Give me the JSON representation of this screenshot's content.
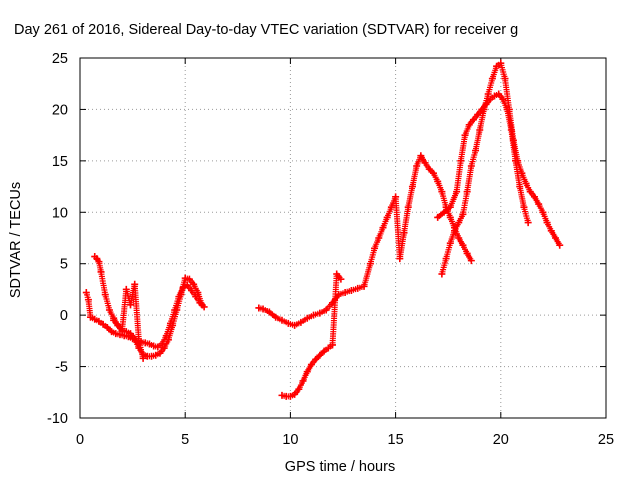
{
  "chart_data": {
    "type": "scatter",
    "title": "Day 261 of 2016, Sidereal Day-to-day VTEC variation (SDTVAR) for receiver g",
    "xlabel": "GPS time / hours",
    "ylabel": "SDTVAR / TECUs",
    "xlim": [
      0,
      25
    ],
    "ylim": [
      -10,
      25
    ],
    "xticks": [
      "0",
      "5",
      "10",
      "15",
      "20",
      "25"
    ],
    "yticks": [
      "-10",
      "-5",
      "0",
      "5",
      "10",
      "15",
      "20",
      "25"
    ],
    "grid": true,
    "marker": "+",
    "series_color": "#ff0000",
    "series": [
      {
        "x": [
          0.3,
          0.4,
          0.5,
          0.7,
          0.9,
          1.1,
          1.3,
          1.5,
          1.7,
          1.9,
          2.1,
          2.3,
          2.5,
          2.7,
          2.9,
          3.1,
          3.3,
          3.5,
          3.7,
          3.9,
          4.1,
          4.3,
          4.5,
          4.7,
          4.9,
          5.1,
          5.3,
          5.5,
          5.7,
          5.9
        ],
        "y": [
          2.2,
          1.5,
          -0.2,
          -0.4,
          -0.6,
          -0.9,
          -1.2,
          -1.6,
          -1.8,
          -1.9,
          -2.0,
          -2.1,
          -2.3,
          -2.5,
          -2.6,
          -2.7,
          -2.8,
          -3.0,
          -3.1,
          -2.8,
          -2.0,
          -0.8,
          0.5,
          1.8,
          2.7,
          2.9,
          2.4,
          1.8,
          1.2,
          0.8
        ]
      },
      {
        "x": [
          0.7,
          0.8,
          0.9,
          1.0,
          1.2,
          1.4,
          1.6,
          1.8,
          2.0,
          2.2,
          2.4,
          2.6,
          2.8,
          3.0,
          3.2,
          3.4,
          3.6,
          3.8,
          4.0,
          4.2,
          4.4,
          4.6,
          4.8,
          5.0,
          5.2,
          5.4,
          5.6,
          5.8
        ],
        "y": [
          5.7,
          5.5,
          5.2,
          4.2,
          2.0,
          0.5,
          -0.3,
          -1.0,
          -1.5,
          -1.6,
          -1.8,
          -2.3,
          -3.2,
          -3.8,
          -4.0,
          -4.0,
          -3.9,
          -3.7,
          -3.2,
          -2.4,
          -1.0,
          0.5,
          2.0,
          3.6,
          3.5,
          3.0,
          2.2,
          1.0
        ]
      },
      {
        "x": [
          1.6,
          1.8,
          2.0,
          2.2,
          2.4,
          2.6,
          2.8,
          3.0
        ],
        "y": [
          -0.5,
          -1.0,
          -1.5,
          2.5,
          1.0,
          3.0,
          -2.5,
          -4.2
        ]
      },
      {
        "x": [
          8.5,
          8.7,
          9.0,
          9.3,
          9.6,
          9.9,
          10.2,
          10.5,
          10.8,
          11.1,
          11.4,
          11.7,
          12.0,
          12.3,
          12.6,
          12.9,
          13.2,
          13.5,
          13.8,
          14.0,
          14.2,
          14.4,
          14.6,
          14.8,
          15.0,
          15.2,
          15.4,
          15.6,
          15.8,
          16.0,
          16.2,
          16.4,
          16.6,
          16.8,
          17.0,
          17.2,
          17.4,
          17.6,
          17.8,
          18.0,
          18.2,
          18.4,
          18.6
        ],
        "y": [
          0.7,
          0.6,
          0.3,
          -0.2,
          -0.5,
          -0.8,
          -1.0,
          -0.7,
          -0.3,
          0.0,
          0.2,
          0.5,
          1.2,
          2.0,
          2.2,
          2.4,
          2.6,
          2.8,
          5.0,
          6.5,
          7.5,
          8.5,
          9.5,
          10.5,
          11.5,
          5.5,
          8.0,
          10.5,
          12.5,
          14.5,
          15.5,
          14.8,
          14.2,
          13.8,
          13.0,
          12.0,
          10.5,
          9.5,
          8.5,
          7.5,
          6.8,
          6.0,
          5.3
        ]
      },
      {
        "x": [
          9.6,
          9.8,
          10.0,
          10.2,
          10.4,
          10.6,
          10.8,
          11.0,
          11.2,
          11.4,
          11.6,
          11.8,
          12.0,
          12.2,
          12.4
        ],
        "y": [
          -7.8,
          -7.9,
          -7.9,
          -7.7,
          -7.2,
          -6.4,
          -5.5,
          -4.8,
          -4.3,
          -3.9,
          -3.5,
          -3.2,
          -2.9,
          4.0,
          3.5
        ]
      },
      {
        "x": [
          17.2,
          17.4,
          17.6,
          17.8,
          18.0,
          18.2,
          18.4,
          18.6,
          18.8,
          19.0,
          19.2,
          19.4,
          19.6,
          19.8,
          20.0,
          20.2,
          20.4,
          20.6,
          20.8,
          21.0,
          21.2,
          21.4,
          21.6,
          21.8,
          22.0,
          22.2,
          22.4,
          22.6,
          22.8
        ],
        "y": [
          4.0,
          5.5,
          7.0,
          8.2,
          9.0,
          9.8,
          12.0,
          14.5,
          16.0,
          18.0,
          20.0,
          21.5,
          23.0,
          24.2,
          24.5,
          23.0,
          20.0,
          17.0,
          15.0,
          13.8,
          12.8,
          12.0,
          11.5,
          10.8,
          10.0,
          9.0,
          8.2,
          7.5,
          6.8
        ]
      },
      {
        "x": [
          17.0,
          17.3,
          17.6,
          17.9,
          18.1,
          18.3,
          18.5,
          18.7,
          18.9,
          19.1,
          19.3,
          19.5,
          19.7,
          19.9,
          20.1,
          20.3,
          20.5,
          20.7,
          20.9,
          21.1,
          21.3
        ],
        "y": [
          9.5,
          10.0,
          10.5,
          12.0,
          15.0,
          17.5,
          18.5,
          19.0,
          19.5,
          20.0,
          20.5,
          21.0,
          21.3,
          21.5,
          21.0,
          20.0,
          18.0,
          15.0,
          12.5,
          10.5,
          9.0
        ]
      }
    ]
  }
}
